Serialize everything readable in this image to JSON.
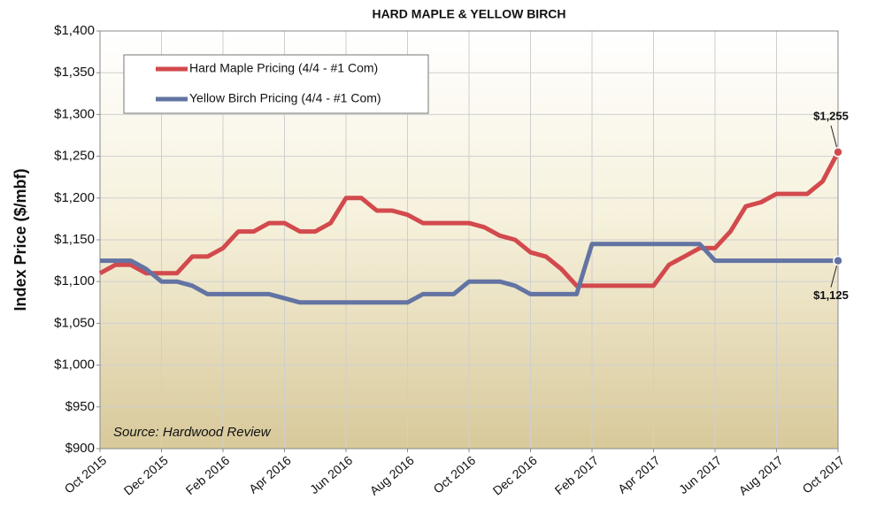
{
  "chart_data": {
    "type": "line",
    "title": "HARD MAPLE & YELLOW BIRCH",
    "y_label": "Index Price ($/mbf)",
    "annotation": "Source: Hardwood Review",
    "categories": [
      "Oct 2015",
      null,
      null,
      null,
      "Dec 2015",
      null,
      null,
      null,
      "Feb 2016",
      null,
      null,
      null,
      "Apr 2016",
      null,
      null,
      null,
      "Jun 2016",
      null,
      null,
      null,
      "Aug 2016",
      null,
      null,
      null,
      "Oct 2016",
      null,
      null,
      null,
      "Dec 2016",
      null,
      null,
      null,
      "Feb 2017",
      null,
      null,
      null,
      "Apr 2017",
      null,
      null,
      null,
      "Jun 2017",
      null,
      null,
      null,
      "Aug 2017",
      null,
      null,
      null,
      "Oct 2017"
    ],
    "series": [
      {
        "name": "Hard Maple Pricing (4/4 - #1 Com)",
        "color": "#d24a4d",
        "values": [
          1110,
          1120,
          1120,
          1110,
          1110,
          1110,
          1130,
          1130,
          1140,
          1160,
          1160,
          1170,
          1170,
          1160,
          1160,
          1170,
          1200,
          1200,
          1185,
          1185,
          1180,
          1170,
          1170,
          1170,
          1170,
          1165,
          1155,
          1150,
          1135,
          1130,
          1115,
          1095,
          1095,
          1095,
          1095,
          1095,
          1095,
          1120,
          1130,
          1140,
          1140,
          1160,
          1190,
          1195,
          1205,
          1205,
          1205,
          1220,
          1255
        ],
        "value_labels": [
          null,
          null,
          null,
          null,
          null,
          null,
          null,
          null,
          null,
          null,
          null,
          null,
          null,
          null,
          null,
          null,
          null,
          null,
          null,
          null,
          null,
          null,
          null,
          null,
          null,
          null,
          null,
          null,
          null,
          null,
          null,
          null,
          null,
          null,
          null,
          null,
          null,
          null,
          null,
          null,
          null,
          null,
          null,
          null,
          null,
          null,
          null,
          null,
          "$1,255"
        ]
      },
      {
        "name": "Yellow Birch Pricing (4/4 - #1 Com)",
        "color": "#6374a3",
        "values": [
          1125,
          1125,
          1125,
          1115,
          1100,
          1100,
          1095,
          1085,
          1085,
          1085,
          1085,
          1085,
          1080,
          1075,
          1075,
          1075,
          1075,
          1075,
          1075,
          1075,
          1075,
          1085,
          1085,
          1085,
          1100,
          1100,
          1100,
          1095,
          1085,
          1085,
          1085,
          1085,
          1145,
          1145,
          1145,
          1145,
          1145,
          1145,
          1145,
          1145,
          1125,
          1125,
          1125,
          1125,
          1125,
          1125,
          1125,
          1125,
          1125
        ],
        "value_labels": [
          null,
          null,
          null,
          null,
          null,
          null,
          null,
          null,
          null,
          null,
          null,
          null,
          null,
          null,
          null,
          null,
          null,
          null,
          null,
          null,
          null,
          null,
          null,
          null,
          null,
          null,
          null,
          null,
          null,
          null,
          null,
          null,
          null,
          null,
          null,
          null,
          null,
          null,
          null,
          null,
          null,
          null,
          null,
          null,
          null,
          null,
          null,
          null,
          "$1,125"
        ]
      }
    ],
    "ylim": [
      900,
      1400
    ],
    "yticks": [
      {
        "value": 900,
        "label": "$900"
      },
      {
        "value": 950,
        "label": "$950"
      },
      {
        "value": 1000,
        "label": "$1,000"
      },
      {
        "value": 1050,
        "label": "$1,050"
      },
      {
        "value": 1100,
        "label": "$1,100"
      },
      {
        "value": 1150,
        "label": "$1,150"
      },
      {
        "value": 1200,
        "label": "$1,200"
      },
      {
        "value": 1250,
        "label": "$1,250"
      },
      {
        "value": 1300,
        "label": "$1,300"
      },
      {
        "value": 1350,
        "label": "$1,350"
      },
      {
        "value": 1400,
        "label": "$1,400"
      }
    ],
    "grid": true
  }
}
